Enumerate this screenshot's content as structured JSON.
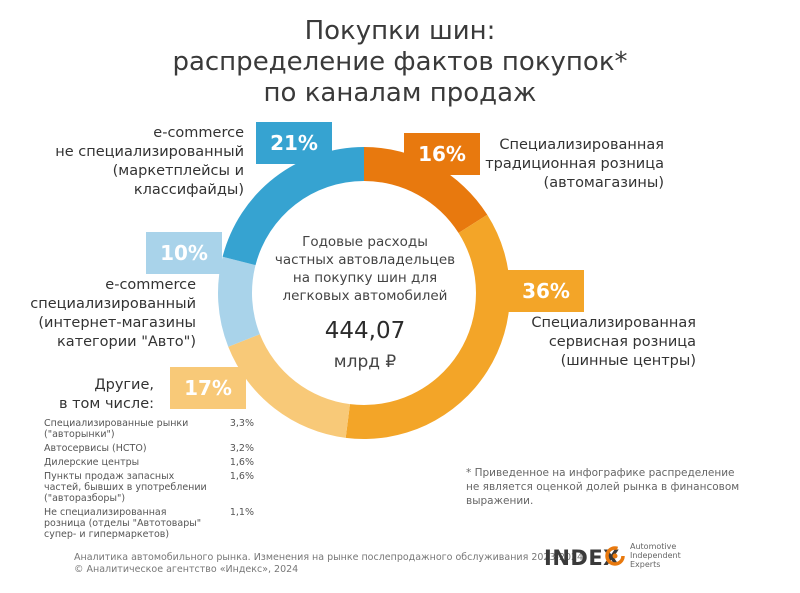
{
  "title": {
    "line1": "Покупки шин:",
    "line2": "распределение фактов покупок*",
    "line3": "по каналам продаж"
  },
  "center": {
    "line1": "Годовые расходы",
    "line2": "частных автовладельцев",
    "line3": "на покупку шин для",
    "line4": "легковых автомобилей",
    "total_value": "444,07",
    "total_unit": "млрд ₽"
  },
  "labels": {
    "ecom_general": [
      "e-commerce",
      "не специализированный",
      "(маркетплейсы и классифайды)"
    ],
    "traditional": [
      "Специализированная",
      "традиционная розница",
      "(автомагазины)"
    ],
    "service": [
      "Специализированная",
      "сервисная розница",
      "(шинные центры)"
    ],
    "ecom_special": [
      "e-commerce",
      "специализированный",
      "(интернет-магазины",
      "категории \"Авто\")"
    ],
    "others": [
      "Другие,",
      "в том числе:"
    ]
  },
  "others_breakdown": [
    {
      "name": "Специализированные рынки (\"авторынки\")",
      "value": "3,3%"
    },
    {
      "name": "Автосервисы (НСТО)",
      "value": "3,2%"
    },
    {
      "name": "Дилерские центры",
      "value": "1,6%"
    },
    {
      "name": "Пункты продаж запасных частей, бывших в употреблении (\"авторазборы\")",
      "value": "1,6%"
    },
    {
      "name": "Не специализированная розница (отделы \"Автотовары\" супер- и гипермаркетов)",
      "value": "1,1%"
    }
  ],
  "footnote": "* Приведенное на инфографике распределение не является оценкой долей рынка в финансовом выражении.",
  "footer": {
    "line1": "Аналитика автомобильного рынка. Изменения на рынке послепродажного обслуживания 2023-2024",
    "line2": "© Аналитическое агентство «Индекс», 2024"
  },
  "logo": {
    "word": "INDEX",
    "sub": [
      "Automotive",
      "Independent",
      "Experts"
    ]
  },
  "chart_data": {
    "type": "pie",
    "categories": [
      "Специализированная традиционная розница (автомагазины)",
      "Специализированная сервисная розница (шинные центры)",
      "Другие, в том числе:",
      "e-commerce специализированный (интернет-магазины категории \"Авто\")",
      "e-commerce не специализированный (маркетплейсы и классифайды)"
    ],
    "values": [
      16,
      36,
      17,
      10,
      21
    ],
    "value_labels": [
      "16%",
      "36%",
      "17%",
      "10%",
      "21%"
    ],
    "colors": [
      "#e8790e",
      "#f3a528",
      "#f8c978",
      "#a9d3ea",
      "#36a3d1"
    ]
  }
}
